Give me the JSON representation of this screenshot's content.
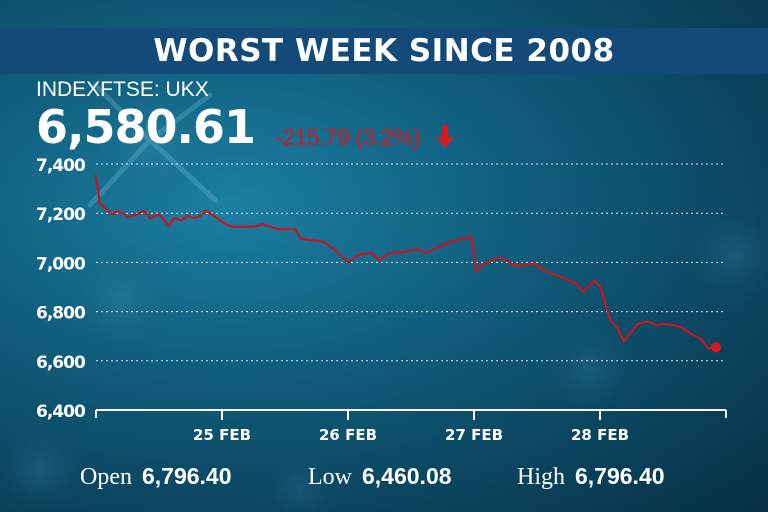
{
  "header": {
    "title": "WORST WEEK SINCE 2008"
  },
  "quote": {
    "ticker": "INDEXFTSE: UKX",
    "price": "6,580.61",
    "change": "-215.79 (3.2%)"
  },
  "stats": {
    "open_label": "Open",
    "open_value": "6,796.40",
    "low_label": "Low",
    "low_value": "6,460.08",
    "high_label": "High",
    "high_value": "6,796.40"
  },
  "colors": {
    "line": "#c8161e",
    "change": "#d41a22",
    "title_band": "#134a78"
  },
  "chart_data": {
    "type": "line",
    "title": "WORST WEEK SINCE 2008",
    "xlabel": "",
    "ylabel": "",
    "ylim": [
      6400,
      7400
    ],
    "yticks": [
      6400,
      6600,
      6800,
      7000,
      7200,
      7400
    ],
    "ytick_labels": [
      "6,400",
      "6,600",
      "6,800",
      "7,000",
      "7,200",
      "7,400"
    ],
    "xlim": [
      0,
      5
    ],
    "xticks": [
      1,
      2,
      3,
      4
    ],
    "xtick_labels": [
      "25 FEB",
      "26 FEB",
      "27 FEB",
      "28 FEB"
    ],
    "grid": true,
    "series": [
      {
        "x": [
          0.0,
          0.03,
          0.13,
          0.18,
          0.25,
          0.33,
          0.38,
          0.43,
          0.5,
          0.58,
          0.62,
          0.68,
          0.72,
          0.78,
          0.83,
          0.87,
          0.92,
          1.0,
          1.05,
          1.1,
          1.25,
          1.32,
          1.45,
          1.53,
          1.58,
          1.63,
          1.73,
          1.8,
          1.9,
          2.0,
          2.08,
          2.18,
          2.25,
          2.32,
          2.36,
          2.42,
          2.55,
          2.62,
          2.82,
          2.98,
          3.02,
          3.07,
          3.19,
          3.25,
          3.33,
          3.4,
          3.48,
          3.56,
          3.62,
          3.72,
          3.79,
          3.82,
          3.87,
          3.95,
          4.0,
          4.08,
          4.14,
          4.19,
          4.3,
          4.38,
          4.45,
          4.52,
          4.58,
          4.65,
          4.72,
          4.8,
          4.86,
          4.92
        ],
        "y": [
          7355,
          7240,
          7195,
          7210,
          7185,
          7195,
          7210,
          7180,
          7195,
          7150,
          7180,
          7170,
          7190,
          7180,
          7190,
          7210,
          7195,
          7165,
          7150,
          7145,
          7145,
          7155,
          7135,
          7135,
          7135,
          7095,
          7090,
          7085,
          7050,
          7000,
          7030,
          7040,
          7010,
          7035,
          7040,
          7040,
          7055,
          7040,
          7085,
          7105,
          6965,
          6990,
          7020,
          7010,
          6985,
          6990,
          6995,
          6965,
          6955,
          6935,
          6920,
          6910,
          6880,
          6925,
          6905,
          6770,
          6730,
          6680,
          6750,
          6760,
          6745,
          6750,
          6745,
          6735,
          6710,
          6690,
          6650,
          6655
        ]
      }
    ]
  }
}
